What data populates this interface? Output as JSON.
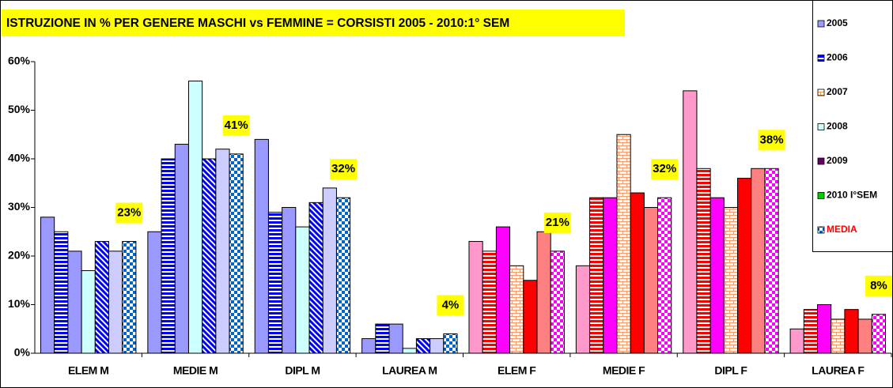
{
  "chart_data": {
    "type": "bar",
    "title": "ISTRUZIONE IN % PER GENERE  MASCHI vs FEMMINE =  CORSISTI 2005 - 2010:1° SEM",
    "categories": [
      "ELEM M",
      "MEDIE M",
      "DIPL M",
      "LAUREA M",
      "ELEM F",
      "MEDIE F",
      "DIPL F",
      "LAUREA F"
    ],
    "category_style": [
      0,
      0,
      0,
      0,
      1,
      1,
      1,
      1
    ],
    "series": [
      {
        "name": "2005",
        "color": "#9999ff",
        "pattern": "plain",
        "name_color": "#000000",
        "styles": [
          {
            "color": "#9999ff",
            "pattern": "plain"
          },
          {
            "color": "#ff99cc",
            "pattern": "plain"
          }
        ],
        "values": [
          28,
          25,
          44,
          3,
          23,
          18,
          54,
          5
        ]
      },
      {
        "name": "2006",
        "color": "#0000ff",
        "pattern": "hstripe",
        "name_color": "#000000",
        "styles": [
          {
            "color": "#0000ff",
            "pattern": "hstripe"
          },
          {
            "color": "#ff0000",
            "pattern": "hstripe"
          }
        ],
        "values": [
          25,
          40,
          29,
          6,
          21,
          32,
          38,
          9
        ]
      },
      {
        "name": "2007",
        "color": "#ff9933",
        "pattern": "brick",
        "name_color": "#000000",
        "styles": [
          {
            "color": "#9999ff",
            "pattern": "plain"
          },
          {
            "color": "#ff00ff",
            "pattern": "plain"
          }
        ],
        "values": [
          21,
          43,
          30,
          6,
          26,
          32,
          32,
          10
        ]
      },
      {
        "name": "2008",
        "color": "#ccffff",
        "pattern": "plain",
        "name_color": "#000000",
        "styles": [
          {
            "color": "#ccffff",
            "pattern": "plain"
          },
          {
            "color": "#ff9966",
            "pattern": "brick"
          }
        ],
        "values": [
          17,
          56,
          26,
          1,
          18,
          45,
          30,
          7
        ]
      },
      {
        "name": "2009",
        "color": "#660066",
        "pattern": "plain",
        "name_color": "#000000",
        "styles": [
          {
            "color": "#0000ff",
            "pattern": "diag"
          },
          {
            "color": "#ff0000",
            "pattern": "plain"
          }
        ],
        "values": [
          23,
          40,
          31,
          3,
          15,
          33,
          36,
          9
        ]
      },
      {
        "name": "2010 I°SEM",
        "color": "#00cc00",
        "pattern": "plain",
        "name_color": "#000000",
        "styles": [
          {
            "color": "#ccccff",
            "pattern": "plain"
          },
          {
            "color": "#ff8080",
            "pattern": "plain"
          }
        ],
        "values": [
          21,
          42,
          34,
          3,
          25,
          30,
          38,
          7
        ]
      },
      {
        "name": "MEDIA",
        "color": "#0066cc",
        "pattern": "check",
        "name_color": "#ff0000",
        "styles": [
          {
            "color": "#0066cc",
            "pattern": "check"
          },
          {
            "color": "#ff00ff",
            "pattern": "check"
          }
        ],
        "values": [
          23,
          41,
          32,
          4,
          21,
          32,
          38,
          8
        ],
        "value_labels": [
          "23%",
          "41%",
          "32%",
          "4%",
          "21%",
          "32%",
          "38%",
          "8%"
        ]
      }
    ],
    "ylim": [
      0,
      60
    ],
    "yticks": [
      {
        "value": 0,
        "label": "0%"
      },
      {
        "value": 10,
        "label": "10%"
      },
      {
        "value": 20,
        "label": "20%"
      },
      {
        "value": 30,
        "label": "30%"
      },
      {
        "value": 40,
        "label": "40%"
      },
      {
        "value": 50,
        "label": "50%"
      },
      {
        "value": 60,
        "label": "60%"
      }
    ],
    "grid": false,
    "legend": "top-right"
  }
}
